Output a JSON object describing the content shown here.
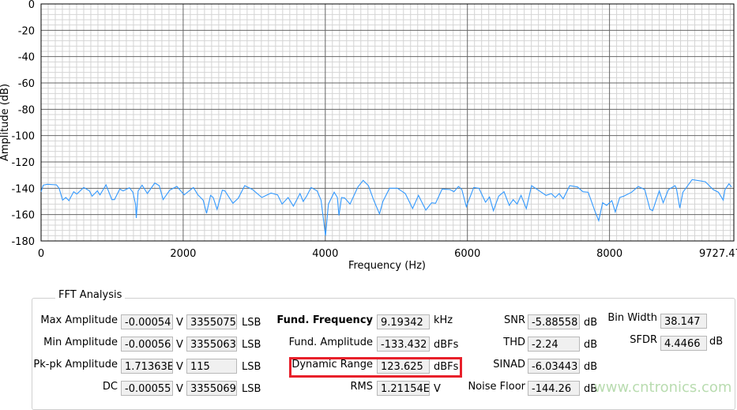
{
  "chart_data": {
    "type": "line",
    "title": "",
    "xlabel": "Frequency (Hz)",
    "ylabel": "Amplitude (dB)",
    "xlim": [
      0,
      9727.47
    ],
    "ylim": [
      -180,
      0
    ],
    "xticks": [
      "0",
      "2000",
      "4000",
      "6000",
      "8000",
      "9727.47"
    ],
    "yticks": [
      "0",
      "-20",
      "-40",
      "-60",
      "-80",
      "-100",
      "-120",
      "-140",
      "-160",
      "-180"
    ],
    "grid": true,
    "line_color": "#3399ff",
    "x": [
      0,
      31,
      87,
      217,
      254,
      303,
      348,
      392,
      459,
      503,
      600,
      681,
      718,
      792,
      829,
      914,
      996,
      1033,
      1107,
      1155,
      1244,
      1292,
      1329,
      1340,
      1366,
      1422,
      1496,
      1600,
      1663,
      1718,
      1811,
      1911,
      2014,
      2144,
      2207,
      2281,
      2329,
      2385,
      2422,
      2477,
      2551,
      2588,
      2700,
      2774,
      2866,
      2977,
      3107,
      3236,
      3329,
      3392,
      3477,
      3551,
      3644,
      3689,
      3737,
      3800,
      3885,
      3940,
      4003,
      4044,
      4125,
      4170,
      4192,
      4229,
      4274,
      4348,
      4459,
      4533,
      4607,
      4681,
      4763,
      4811,
      4904,
      5015,
      5126,
      5229,
      5311,
      5415,
      5496,
      5552,
      5644,
      5755,
      5811,
      5874,
      5922,
      5985,
      6089,
      6163,
      6255,
      6311,
      6366,
      6440,
      6515,
      6589,
      6644,
      6700,
      6755,
      6829,
      6903,
      7014,
      7107,
      7181,
      7237,
      7292,
      7348,
      7440,
      7551,
      7625,
      7700,
      7792,
      7848,
      7903,
      7959,
      8033,
      8081,
      8144,
      8200,
      8311,
      8404,
      8496,
      8570,
      8607,
      8700,
      8755,
      8829,
      8922,
      8941,
      8989,
      9033,
      9163,
      9348,
      9459,
      9533,
      9600,
      9625,
      9681,
      9718
    ],
    "y": [
      -142.6,
      -137.6,
      -137,
      -137.4,
      -140,
      -149,
      -147,
      -149.4,
      -142.6,
      -144.4,
      -139.4,
      -142,
      -146,
      -142,
      -145,
      -137.4,
      -148.6,
      -148.6,
      -140.6,
      -142,
      -139.6,
      -143,
      -152,
      -162.6,
      -142,
      -137.6,
      -144,
      -136,
      -138,
      -148.6,
      -141.4,
      -138.6,
      -145,
      -139.4,
      -145,
      -149,
      -159,
      -145.4,
      -147,
      -156,
      -141.4,
      -142,
      -151.4,
      -147.6,
      -138,
      -141,
      -147,
      -143.6,
      -145,
      -152,
      -147,
      -153.6,
      -144,
      -150,
      -146,
      -139.4,
      -142,
      -149,
      -176,
      -152,
      -143,
      -147,
      -160.6,
      -147,
      -147.4,
      -152,
      -139,
      -134,
      -138,
      -149,
      -159.4,
      -150,
      -140,
      -140,
      -144,
      -155.4,
      -145.4,
      -156.6,
      -151,
      -151.4,
      -140.6,
      -141,
      -142.6,
      -138.6,
      -141,
      -154,
      -139.4,
      -140,
      -150.6,
      -146.6,
      -157,
      -146,
      -142.6,
      -153,
      -148.6,
      -152,
      -145.4,
      -155.4,
      -138,
      -142,
      -145.4,
      -144,
      -147,
      -144,
      -148,
      -138,
      -139,
      -142.6,
      -143,
      -157,
      -164.6,
      -151,
      -153,
      -149.4,
      -158,
      -147,
      -146,
      -143,
      -138.6,
      -141,
      -156,
      -157,
      -142,
      -151,
      -141,
      -138,
      -140,
      -155,
      -143,
      -133.4,
      -135,
      -141,
      -143,
      -149,
      -141,
      -136.6,
      -139
    ]
  },
  "panel": {
    "title": "FFT Analysis",
    "left_rows": [
      {
        "label": "Max Amplitude",
        "volts": "-0.00054",
        "volts_unit": "V",
        "lsb": "3355075",
        "lsb_unit": "LSB"
      },
      {
        "label": "Min Amplitude",
        "volts": "-0.00056",
        "volts_unit": "V",
        "lsb": "3355063",
        "lsb_unit": "LSB"
      },
      {
        "label": "Pk-pk Amplitude",
        "volts": "1.71363E",
        "volts_unit": "V",
        "lsb": "115",
        "lsb_unit": "LSB"
      },
      {
        "label": "DC",
        "volts": "-0.00055",
        "volts_unit": "V",
        "lsb": "3355069",
        "lsb_unit": "LSB"
      }
    ],
    "mid_rows": [
      {
        "label": "Fund. Frequency",
        "value": "9.19342",
        "unit": "kHz"
      },
      {
        "label": "Fund. Amplitude",
        "value": "-133.432",
        "unit": "dBFs"
      },
      {
        "label": "Dynamic Range",
        "value": "123.625",
        "unit": "dBFs"
      },
      {
        "label": "RMS",
        "value": "1.21154E",
        "unit": "V"
      }
    ],
    "right_rows": [
      {
        "label": "SNR",
        "value": "-5.88558",
        "unit": "dB"
      },
      {
        "label": "THD",
        "value": "-2.24",
        "unit": "dB"
      },
      {
        "label": "SINAD",
        "value": "-6.03443",
        "unit": "dB"
      },
      {
        "label": "Noise Floor",
        "value": "-144.26",
        "unit": "dB"
      }
    ],
    "far_rows": [
      {
        "label": "Bin Width",
        "value": "38.147",
        "unit": ""
      },
      {
        "label": "SFDR",
        "value": "4.4466",
        "unit": "dB"
      }
    ],
    "highlight_color": "#e8202a"
  },
  "watermark": "www.cntronics.com"
}
